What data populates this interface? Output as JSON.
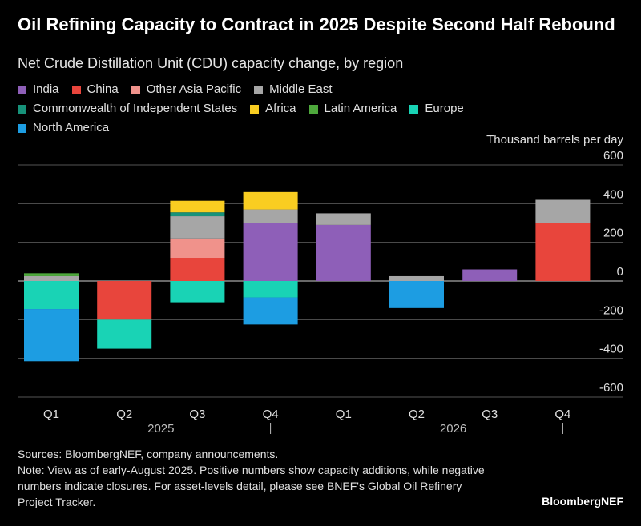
{
  "title": "Oil Refining Capacity to Contract in 2025 Despite Second Half Rebound",
  "subtitle": "Net Crude Distillation Unit (CDU) capacity change, by region",
  "units": "Thousand barrels per day",
  "sources": "Sources: BloombergNEF, company announcements.",
  "note": "Note: View as of early-August 2025. Positive numbers show capacity additions, while negative numbers indicate closures. For asset-levels detail, please see BNEF's Global Oil Refinery Project Tracker.",
  "brand": "BloombergNEF",
  "chart_data": {
    "type": "bar",
    "stacked": true,
    "categories": [
      "Q1",
      "Q2",
      "Q3",
      "Q4",
      "Q1",
      "Q2",
      "Q3",
      "Q4"
    ],
    "years": [
      {
        "label": "2025",
        "quarters": [
          0,
          1,
          2,
          3
        ]
      },
      {
        "label": "2026",
        "quarters": [
          4,
          5,
          6,
          7
        ]
      }
    ],
    "ylim": [
      -600,
      600
    ],
    "yticks": [
      600,
      400,
      200,
      0,
      -200,
      -400,
      -600
    ],
    "ytick_labels": [
      "600",
      "400",
      "200",
      "0",
      "-200",
      "-400",
      "-600"
    ],
    "grid": true,
    "legend_position": "top-left",
    "series": [
      {
        "name": "India",
        "color": "#8e5fb8",
        "values": [
          0,
          0,
          0,
          300,
          290,
          0,
          60,
          0
        ]
      },
      {
        "name": "China",
        "color": "#e8453c",
        "values": [
          0,
          -200,
          120,
          0,
          0,
          0,
          0,
          300
        ]
      },
      {
        "name": "Other Asia Pacific",
        "color": "#f0928b",
        "values": [
          0,
          0,
          100,
          0,
          0,
          0,
          0,
          0
        ]
      },
      {
        "name": "Middle East",
        "color": "#a6a6a6",
        "values": [
          25,
          0,
          115,
          70,
          60,
          25,
          0,
          120
        ]
      },
      {
        "name": "Commonwealth of Independent States",
        "color": "#17927a",
        "values": [
          0,
          0,
          20,
          0,
          0,
          0,
          0,
          0
        ]
      },
      {
        "name": "Africa",
        "color": "#f9cd21",
        "values": [
          0,
          0,
          60,
          90,
          0,
          0,
          0,
          0
        ]
      },
      {
        "name": "Latin America",
        "color": "#4ea83c",
        "values": [
          15,
          0,
          0,
          0,
          0,
          0,
          0,
          0
        ]
      },
      {
        "name": "Europe",
        "color": "#19d3b5",
        "values": [
          -145,
          -150,
          -110,
          -85,
          0,
          0,
          0,
          0
        ]
      },
      {
        "name": "North America",
        "color": "#1d9de2",
        "values": [
          -270,
          0,
          0,
          -140,
          0,
          -140,
          0,
          0
        ]
      }
    ]
  }
}
